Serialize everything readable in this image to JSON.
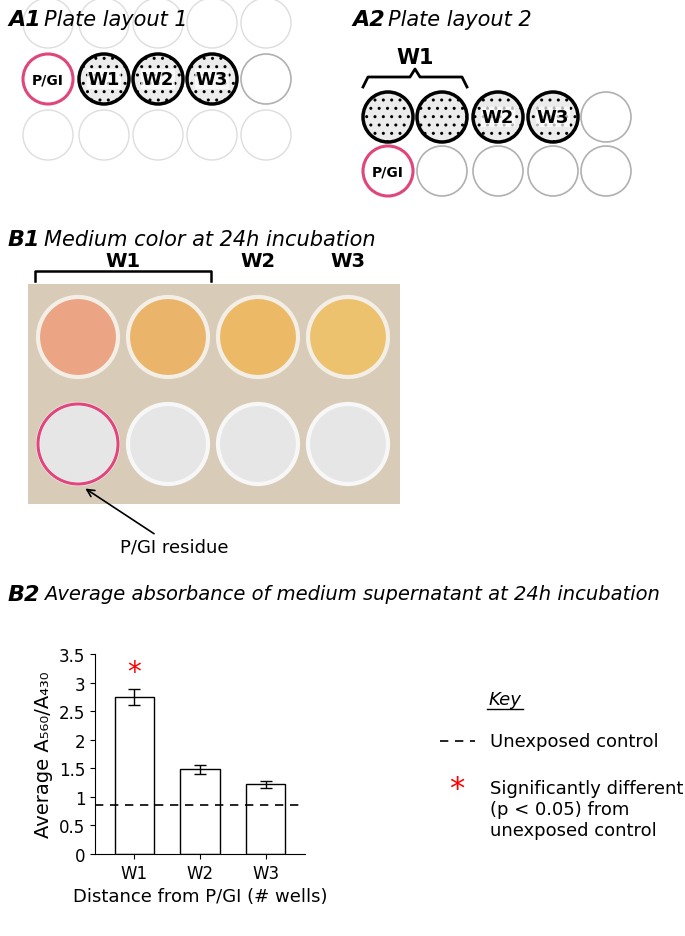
{
  "panels": {
    "A1": {
      "label": "A1",
      "title": "Plate layout 1",
      "source_well": "P/GI",
      "wells": [
        "W1",
        "W2",
        "W3"
      ]
    },
    "A2": {
      "label": "A2",
      "title": "Plate layout 2",
      "group_label": "W1",
      "wells": [
        "W2",
        "W3"
      ],
      "source_well": "P/GI"
    },
    "B1": {
      "label": "B1",
      "title": "Medium color at 24h incubation",
      "column_labels": [
        "W1",
        "W2",
        "W3"
      ],
      "annotation": "P/GI residue"
    },
    "B2": {
      "label": "B2"
    }
  },
  "chart_data": {
    "type": "bar",
    "title": "Average absorbance of medium supernatant at 24h incubation",
    "categories": [
      "W1",
      "W2",
      "W3"
    ],
    "values": [
      2.75,
      1.48,
      1.22
    ],
    "errors": [
      0.14,
      0.08,
      0.06
    ],
    "color": "#ffffff",
    "x_label": "Distance from P/GI (# wells)",
    "y_label": "Average A₅₆₀/A₄₃₀",
    "ylim": [
      0,
      3.5
    ],
    "yticks": [
      0,
      0.5,
      1,
      1.5,
      2,
      2.5,
      3,
      3.5
    ],
    "control": 0.85,
    "significant": [
      "W1"
    ],
    "key": {
      "title": "Key",
      "control_label": "Unexposed control",
      "significance_symbol": "*",
      "significance_label": "Significantly different (p < 0.05) from unexposed control"
    }
  }
}
